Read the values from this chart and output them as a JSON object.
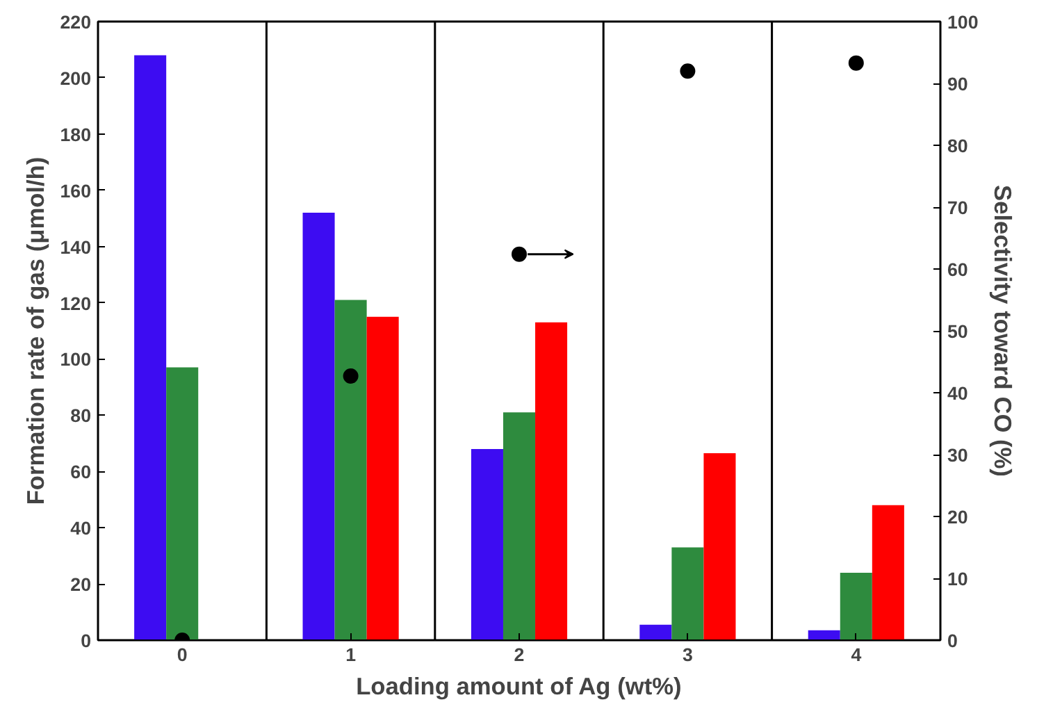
{
  "chart_data": {
    "type": "bar",
    "xlabel": "Loading amount of Ag (wt%)",
    "ylabel": "Formation rate of gas (μmol/h)",
    "y2label": "Selectivity toward CO (%)",
    "x": [
      0,
      1,
      2,
      3,
      4
    ],
    "xlim": [
      -0.5,
      4.5
    ],
    "xticks": [
      0,
      1,
      2,
      3,
      4
    ],
    "ylim": [
      0,
      220
    ],
    "yticks": [
      0,
      20,
      40,
      60,
      80,
      100,
      120,
      140,
      160,
      180,
      200,
      220
    ],
    "y2lim": [
      0,
      100
    ],
    "y2ticks": [
      0,
      10,
      20,
      30,
      40,
      50,
      60,
      70,
      80,
      90,
      100
    ],
    "series": [
      {
        "color": "#3d0cf2",
        "values": [
          208,
          152,
          68,
          5.5,
          3.5
        ]
      },
      {
        "color": "#2e8b3e",
        "values": [
          97,
          121,
          81,
          33,
          24
        ]
      },
      {
        "color": "#ff0000",
        "values": [
          0,
          115,
          113,
          66.5,
          48
        ]
      },
      {
        "type": "scatter",
        "axis": "y2",
        "color": "#000000",
        "values": [
          0,
          42.7,
          62.4,
          92,
          93.3
        ]
      }
    ],
    "marker": "circle",
    "grid": false,
    "ref_lines": [
      {
        "axis": "x",
        "value": 0.5,
        "color": "#000000"
      },
      {
        "axis": "x",
        "value": 1.5,
        "color": "#000000"
      },
      {
        "axis": "x",
        "value": 2.5,
        "color": "#000000"
      },
      {
        "axis": "x",
        "value": 3.5,
        "color": "#000000"
      }
    ]
  }
}
